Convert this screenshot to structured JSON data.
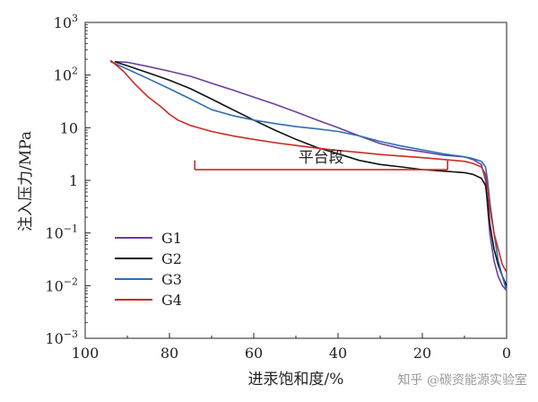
{
  "chart_data": {
    "type": "line",
    "xlabel": "进汞饱和度/%",
    "ylabel": "注入压力/MPa",
    "x_reversed": true,
    "xlim": [
      100,
      0
    ],
    "ylim": [
      0.001,
      1000
    ],
    "yscale": "log",
    "x_ticks": [
      100,
      80,
      60,
      40,
      20,
      0
    ],
    "x_tick_labels": [
      "100",
      "80",
      "60",
      "40",
      "20",
      "0"
    ],
    "y_ticks": [
      1000,
      100,
      10,
      1,
      0.1,
      0.01,
      0.001
    ],
    "y_tick_labels": [
      {
        "base": "10",
        "exp": "3"
      },
      {
        "base": "10",
        "exp": "2"
      },
      {
        "base": "10",
        "exp": ""
      },
      {
        "base": "1",
        "exp": ""
      },
      {
        "base": "10",
        "exp": "−1"
      },
      {
        "base": "10",
        "exp": "−2"
      },
      {
        "base": "10",
        "exp": "−3"
      }
    ],
    "grid": false,
    "legend_position": "bottom-left",
    "series": [
      {
        "name": "G1",
        "color": "#6b3fa0",
        "points": [
          [
            93,
            180
          ],
          [
            90,
            175
          ],
          [
            85,
            145
          ],
          [
            80,
            118
          ],
          [
            75,
            95
          ],
          [
            70,
            70
          ],
          [
            65,
            52
          ],
          [
            60,
            38
          ],
          [
            55,
            28
          ],
          [
            50,
            20
          ],
          [
            45,
            14
          ],
          [
            40,
            10
          ],
          [
            35,
            7
          ],
          [
            30,
            5
          ],
          [
            25,
            4
          ],
          [
            20,
            3.5
          ],
          [
            15,
            3
          ],
          [
            10,
            2.8
          ],
          [
            8,
            2.5
          ],
          [
            6,
            2
          ],
          [
            5,
            1
          ],
          [
            4.5,
            0.3
          ],
          [
            4,
            0.1
          ],
          [
            3,
            0.03
          ],
          [
            2,
            0.015
          ],
          [
            1,
            0.01
          ],
          [
            0,
            0.008
          ]
        ]
      },
      {
        "name": "G2",
        "color": "#111111",
        "points": [
          [
            93,
            180
          ],
          [
            90,
            150
          ],
          [
            85,
            110
          ],
          [
            80,
            80
          ],
          [
            75,
            55
          ],
          [
            70,
            35
          ],
          [
            65,
            22
          ],
          [
            60,
            14
          ],
          [
            55,
            9
          ],
          [
            50,
            6
          ],
          [
            45,
            4.2
          ],
          [
            40,
            3.2
          ],
          [
            35,
            2.4
          ],
          [
            30,
            2
          ],
          [
            25,
            1.8
          ],
          [
            20,
            1.6
          ],
          [
            15,
            1.5
          ],
          [
            10,
            1.4
          ],
          [
            8,
            1.3
          ],
          [
            6,
            1.1
          ],
          [
            5,
            0.8
          ],
          [
            4.5,
            0.4
          ],
          [
            4,
            0.15
          ],
          [
            3,
            0.05
          ],
          [
            2,
            0.025
          ],
          [
            1,
            0.015
          ],
          [
            0,
            0.01
          ]
        ]
      },
      {
        "name": "G3",
        "color": "#2e6fb3",
        "points": [
          [
            94,
            180
          ],
          [
            90,
            130
          ],
          [
            85,
            85
          ],
          [
            80,
            55
          ],
          [
            75,
            35
          ],
          [
            70,
            22
          ],
          [
            65,
            17
          ],
          [
            60,
            14
          ],
          [
            55,
            12
          ],
          [
            50,
            10.5
          ],
          [
            45,
            9.5
          ],
          [
            40,
            8.5
          ],
          [
            35,
            7
          ],
          [
            30,
            5.5
          ],
          [
            25,
            4.5
          ],
          [
            20,
            3.8
          ],
          [
            15,
            3.2
          ],
          [
            10,
            2.8
          ],
          [
            8,
            2.6
          ],
          [
            6,
            2.3
          ],
          [
            5,
            1.8
          ],
          [
            4.5,
            1
          ],
          [
            4,
            0.4
          ],
          [
            3,
            0.1
          ],
          [
            2,
            0.03
          ],
          [
            1,
            0.015
          ],
          [
            0,
            0.008
          ]
        ]
      },
      {
        "name": "G4",
        "color": "#cc2a24",
        "points": [
          [
            94,
            190
          ],
          [
            91,
            120
          ],
          [
            88,
            65
          ],
          [
            85,
            38
          ],
          [
            82,
            25
          ],
          [
            80,
            18
          ],
          [
            78,
            14
          ],
          [
            75,
            11
          ],
          [
            70,
            8.5
          ],
          [
            65,
            7
          ],
          [
            60,
            6
          ],
          [
            55,
            5.2
          ],
          [
            50,
            4.6
          ],
          [
            45,
            4.1
          ],
          [
            40,
            3.7
          ],
          [
            35,
            3.4
          ],
          [
            30,
            3.1
          ],
          [
            25,
            2.9
          ],
          [
            20,
            2.7
          ],
          [
            15,
            2.5
          ],
          [
            10,
            2.3
          ],
          [
            8,
            2.1
          ],
          [
            6,
            1.8
          ],
          [
            5,
            1.3
          ],
          [
            4.5,
            0.7
          ],
          [
            4,
            0.3
          ],
          [
            3,
            0.1
          ],
          [
            2,
            0.05
          ],
          [
            1,
            0.025
          ],
          [
            0,
            0.018
          ]
        ]
      }
    ],
    "annotations": [
      {
        "text": "平台段",
        "type": "bracket",
        "x_from": 74,
        "x_to": 14,
        "y": 1.6,
        "y_tick_top": 2.4,
        "color": "#cc2a24"
      }
    ]
  },
  "watermark": {
    "text": "知乎 @碳资能源实验室"
  }
}
